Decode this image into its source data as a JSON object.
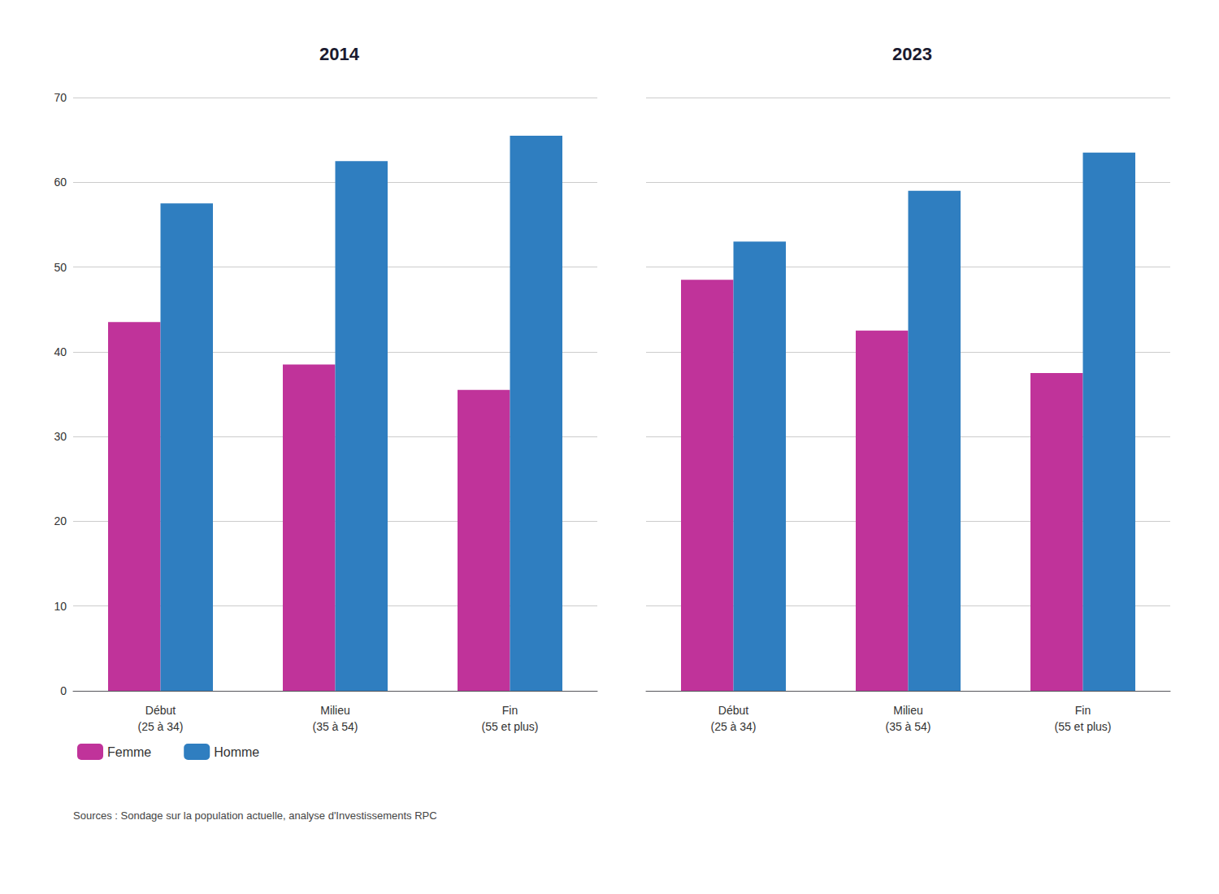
{
  "chart_data": [
    {
      "type": "bar",
      "title": "2014",
      "categories": [
        "Début\n(25 à 34)",
        "Milieu\n(35 à 54)",
        "Fin\n(55 et plus)"
      ],
      "series": [
        {
          "name": "Femme",
          "color": "#C0339A",
          "values": [
            43.5,
            38.5,
            35.5
          ]
        },
        {
          "name": "Homme",
          "color": "#2F7EC0",
          "values": [
            57.5,
            62.5,
            65.5
          ]
        }
      ],
      "ylim": [
        0,
        70
      ],
      "yticks": [
        0,
        10,
        20,
        30,
        40,
        50,
        60,
        70
      ],
      "grid": true,
      "legend": "lower left",
      "annotations": [
        "Sources : Sondage sur la population actuelle, analyse d'Investissements RPC"
      ]
    },
    {
      "type": "bar",
      "title": "2023",
      "categories": [
        "Début\n(25 à 34)",
        "Milieu\n(35 à 54)",
        "Fin\n(55 et plus)"
      ],
      "series": [
        {
          "name": "Femme",
          "color": "#C0339A",
          "values": [
            48.5,
            42.5,
            37.5
          ]
        },
        {
          "name": "Homme",
          "color": "#2F7EC0",
          "values": [
            53.0,
            59.0,
            63.5
          ]
        }
      ],
      "ylim": [
        0,
        70
      ],
      "yticks": [
        0,
        10,
        20,
        30,
        40,
        50,
        60,
        70
      ],
      "grid": true,
      "tick_labels": "x"
    }
  ]
}
